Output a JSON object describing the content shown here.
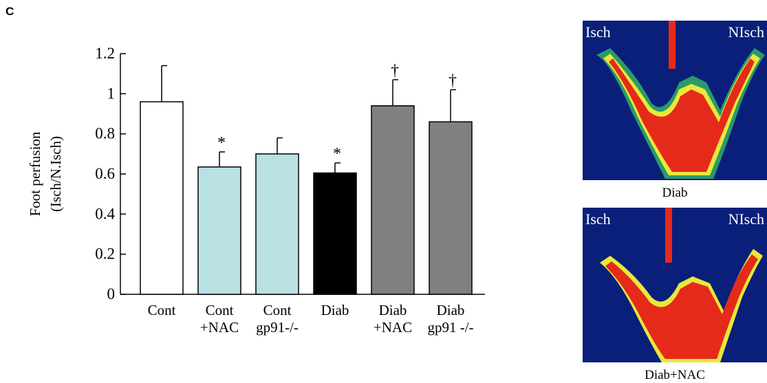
{
  "panel_label": "C",
  "chart_data": {
    "type": "bar",
    "y_label": [
      "Foot perfusion",
      "(Isch/N.Isch)"
    ],
    "categories": [
      [
        "Cont"
      ],
      [
        "Cont",
        "+NAC"
      ],
      [
        "Cont",
        "gp91-/-"
      ],
      [
        "Diab"
      ],
      [
        "Diab",
        "+NAC"
      ],
      [
        "Diab",
        "gp91 -/-"
      ]
    ],
    "values": [
      0.96,
      0.635,
      0.7,
      0.605,
      0.94,
      0.86
    ],
    "errors": [
      0.18,
      0.075,
      0.08,
      0.05,
      0.13,
      0.16
    ],
    "colors": [
      "#ffffff",
      "#b9e1e4",
      "#b9e1e4",
      "#000000",
      "#808080",
      "#808080"
    ],
    "significance": [
      null,
      "*",
      null,
      "*",
      "†",
      "†"
    ],
    "ylim": [
      0,
      1.2
    ],
    "yticks": [
      0,
      0.2,
      0.4,
      0.6,
      0.8,
      1,
      1.2
    ]
  },
  "images": [
    {
      "left_label": "Isch",
      "right_label": "NIsch",
      "caption": "Diab"
    },
    {
      "left_label": "Isch",
      "right_label": "NIsch",
      "caption": "Diab+NAC"
    }
  ]
}
